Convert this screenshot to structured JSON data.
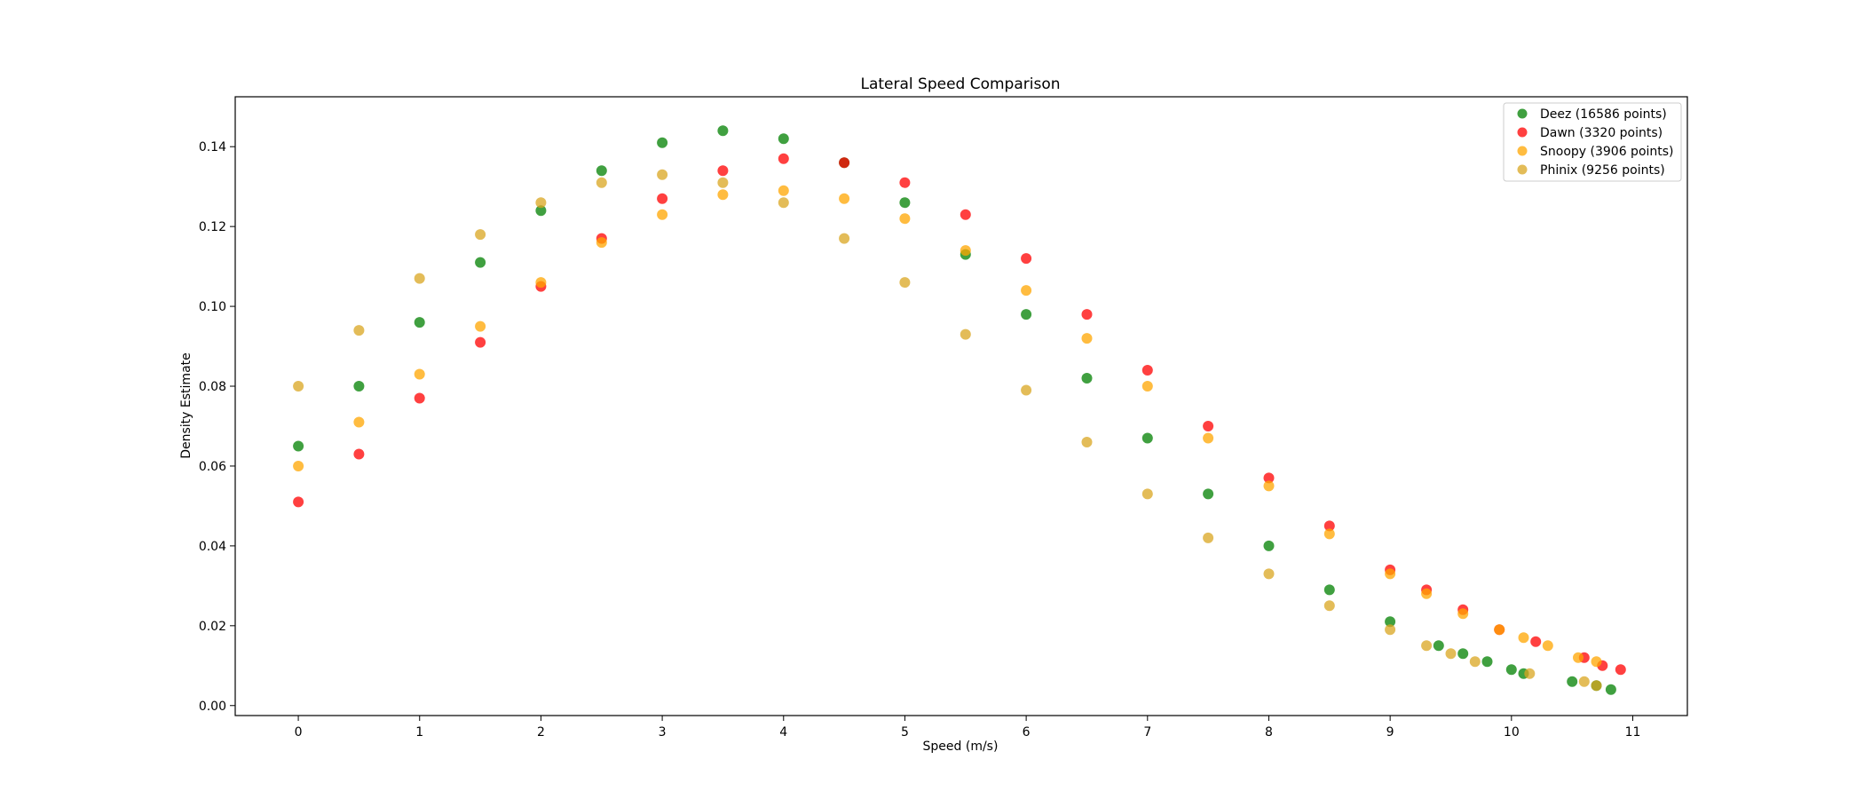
{
  "chart_data": {
    "type": "scatter",
    "title": "Lateral Speed Comparison",
    "xlabel": "Speed (m/s)",
    "ylabel": "Density Estimate",
    "xlim": [
      -0.52,
      11.45
    ],
    "ylim": [
      -0.0025,
      0.1525
    ],
    "xticks": [
      0,
      1,
      2,
      3,
      4,
      5,
      6,
      7,
      8,
      9,
      10,
      11
    ],
    "yticks": [
      0.0,
      0.02,
      0.04,
      0.06,
      0.08,
      0.1,
      0.12,
      0.14
    ],
    "ytick_labels": [
      "0.00",
      "0.02",
      "0.04",
      "0.06",
      "0.08",
      "0.10",
      "0.12",
      "0.14"
    ],
    "grid": false,
    "legend_position": "top-right",
    "series": [
      {
        "name": "Deez (16586 points)",
        "color": "#008000",
        "points": [
          [
            0.0,
            0.065
          ],
          [
            0.5,
            0.08
          ],
          [
            1.0,
            0.096
          ],
          [
            1.5,
            0.111
          ],
          [
            2.0,
            0.124
          ],
          [
            2.5,
            0.134
          ],
          [
            3.0,
            0.141
          ],
          [
            3.5,
            0.144
          ],
          [
            4.0,
            0.142
          ],
          [
            4.5,
            0.136
          ],
          [
            5.0,
            0.126
          ],
          [
            5.5,
            0.113
          ],
          [
            6.0,
            0.098
          ],
          [
            6.5,
            0.082
          ],
          [
            7.0,
            0.067
          ],
          [
            7.5,
            0.053
          ],
          [
            8.0,
            0.04
          ],
          [
            8.5,
            0.029
          ],
          [
            9.0,
            0.021
          ],
          [
            9.4,
            0.015
          ],
          [
            9.6,
            0.013
          ],
          [
            9.8,
            0.011
          ],
          [
            10.0,
            0.009
          ],
          [
            10.1,
            0.008
          ],
          [
            10.5,
            0.006
          ],
          [
            10.7,
            0.005
          ],
          [
            10.82,
            0.004
          ]
        ]
      },
      {
        "name": "Dawn (3320 points)",
        "color": "#ff0000",
        "points": [
          [
            0.0,
            0.051
          ],
          [
            0.5,
            0.063
          ],
          [
            1.0,
            0.077
          ],
          [
            1.5,
            0.091
          ],
          [
            2.0,
            0.105
          ],
          [
            2.5,
            0.117
          ],
          [
            3.0,
            0.127
          ],
          [
            3.5,
            0.134
          ],
          [
            4.0,
            0.137
          ],
          [
            4.5,
            0.136
          ],
          [
            5.0,
            0.131
          ],
          [
            5.5,
            0.123
          ],
          [
            6.0,
            0.112
          ],
          [
            6.5,
            0.098
          ],
          [
            7.0,
            0.084
          ],
          [
            7.5,
            0.07
          ],
          [
            8.0,
            0.057
          ],
          [
            8.5,
            0.045
          ],
          [
            9.0,
            0.034
          ],
          [
            9.3,
            0.029
          ],
          [
            9.6,
            0.024
          ],
          [
            9.9,
            0.019
          ],
          [
            10.2,
            0.016
          ],
          [
            10.6,
            0.012
          ],
          [
            10.75,
            0.01
          ],
          [
            10.9,
            0.009
          ]
        ]
      },
      {
        "name": "Snoopy (3906 points)",
        "color": "#ffa500",
        "points": [
          [
            0.0,
            0.06
          ],
          [
            0.5,
            0.071
          ],
          [
            1.0,
            0.083
          ],
          [
            1.5,
            0.095
          ],
          [
            2.0,
            0.106
          ],
          [
            2.5,
            0.116
          ],
          [
            3.0,
            0.123
          ],
          [
            3.5,
            0.128
          ],
          [
            4.0,
            0.129
          ],
          [
            4.5,
            0.127
          ],
          [
            5.0,
            0.122
          ],
          [
            5.5,
            0.114
          ],
          [
            6.0,
            0.104
          ],
          [
            6.5,
            0.092
          ],
          [
            7.0,
            0.08
          ],
          [
            7.5,
            0.067
          ],
          [
            8.0,
            0.055
          ],
          [
            8.5,
            0.043
          ],
          [
            9.0,
            0.033
          ],
          [
            9.3,
            0.028
          ],
          [
            9.6,
            0.023
          ],
          [
            9.9,
            0.019
          ],
          [
            10.1,
            0.017
          ],
          [
            10.3,
            0.015
          ],
          [
            10.55,
            0.012
          ],
          [
            10.7,
            0.011
          ]
        ]
      },
      {
        "name": "Phinix (9256 points)",
        "color": "#daa520",
        "points": [
          [
            0.0,
            0.08
          ],
          [
            0.5,
            0.094
          ],
          [
            1.0,
            0.107
          ],
          [
            1.5,
            0.118
          ],
          [
            2.0,
            0.126
          ],
          [
            2.5,
            0.131
          ],
          [
            3.0,
            0.133
          ],
          [
            3.5,
            0.131
          ],
          [
            4.0,
            0.126
          ],
          [
            4.5,
            0.117
          ],
          [
            5.0,
            0.106
          ],
          [
            5.5,
            0.093
          ],
          [
            6.0,
            0.079
          ],
          [
            6.5,
            0.066
          ],
          [
            7.0,
            0.053
          ],
          [
            7.5,
            0.042
          ],
          [
            8.0,
            0.033
          ],
          [
            8.5,
            0.025
          ],
          [
            9.0,
            0.019
          ],
          [
            9.3,
            0.015
          ],
          [
            9.5,
            0.013
          ],
          [
            9.7,
            0.011
          ],
          [
            10.15,
            0.008
          ],
          [
            10.6,
            0.006
          ],
          [
            10.7,
            0.005
          ]
        ]
      }
    ]
  }
}
